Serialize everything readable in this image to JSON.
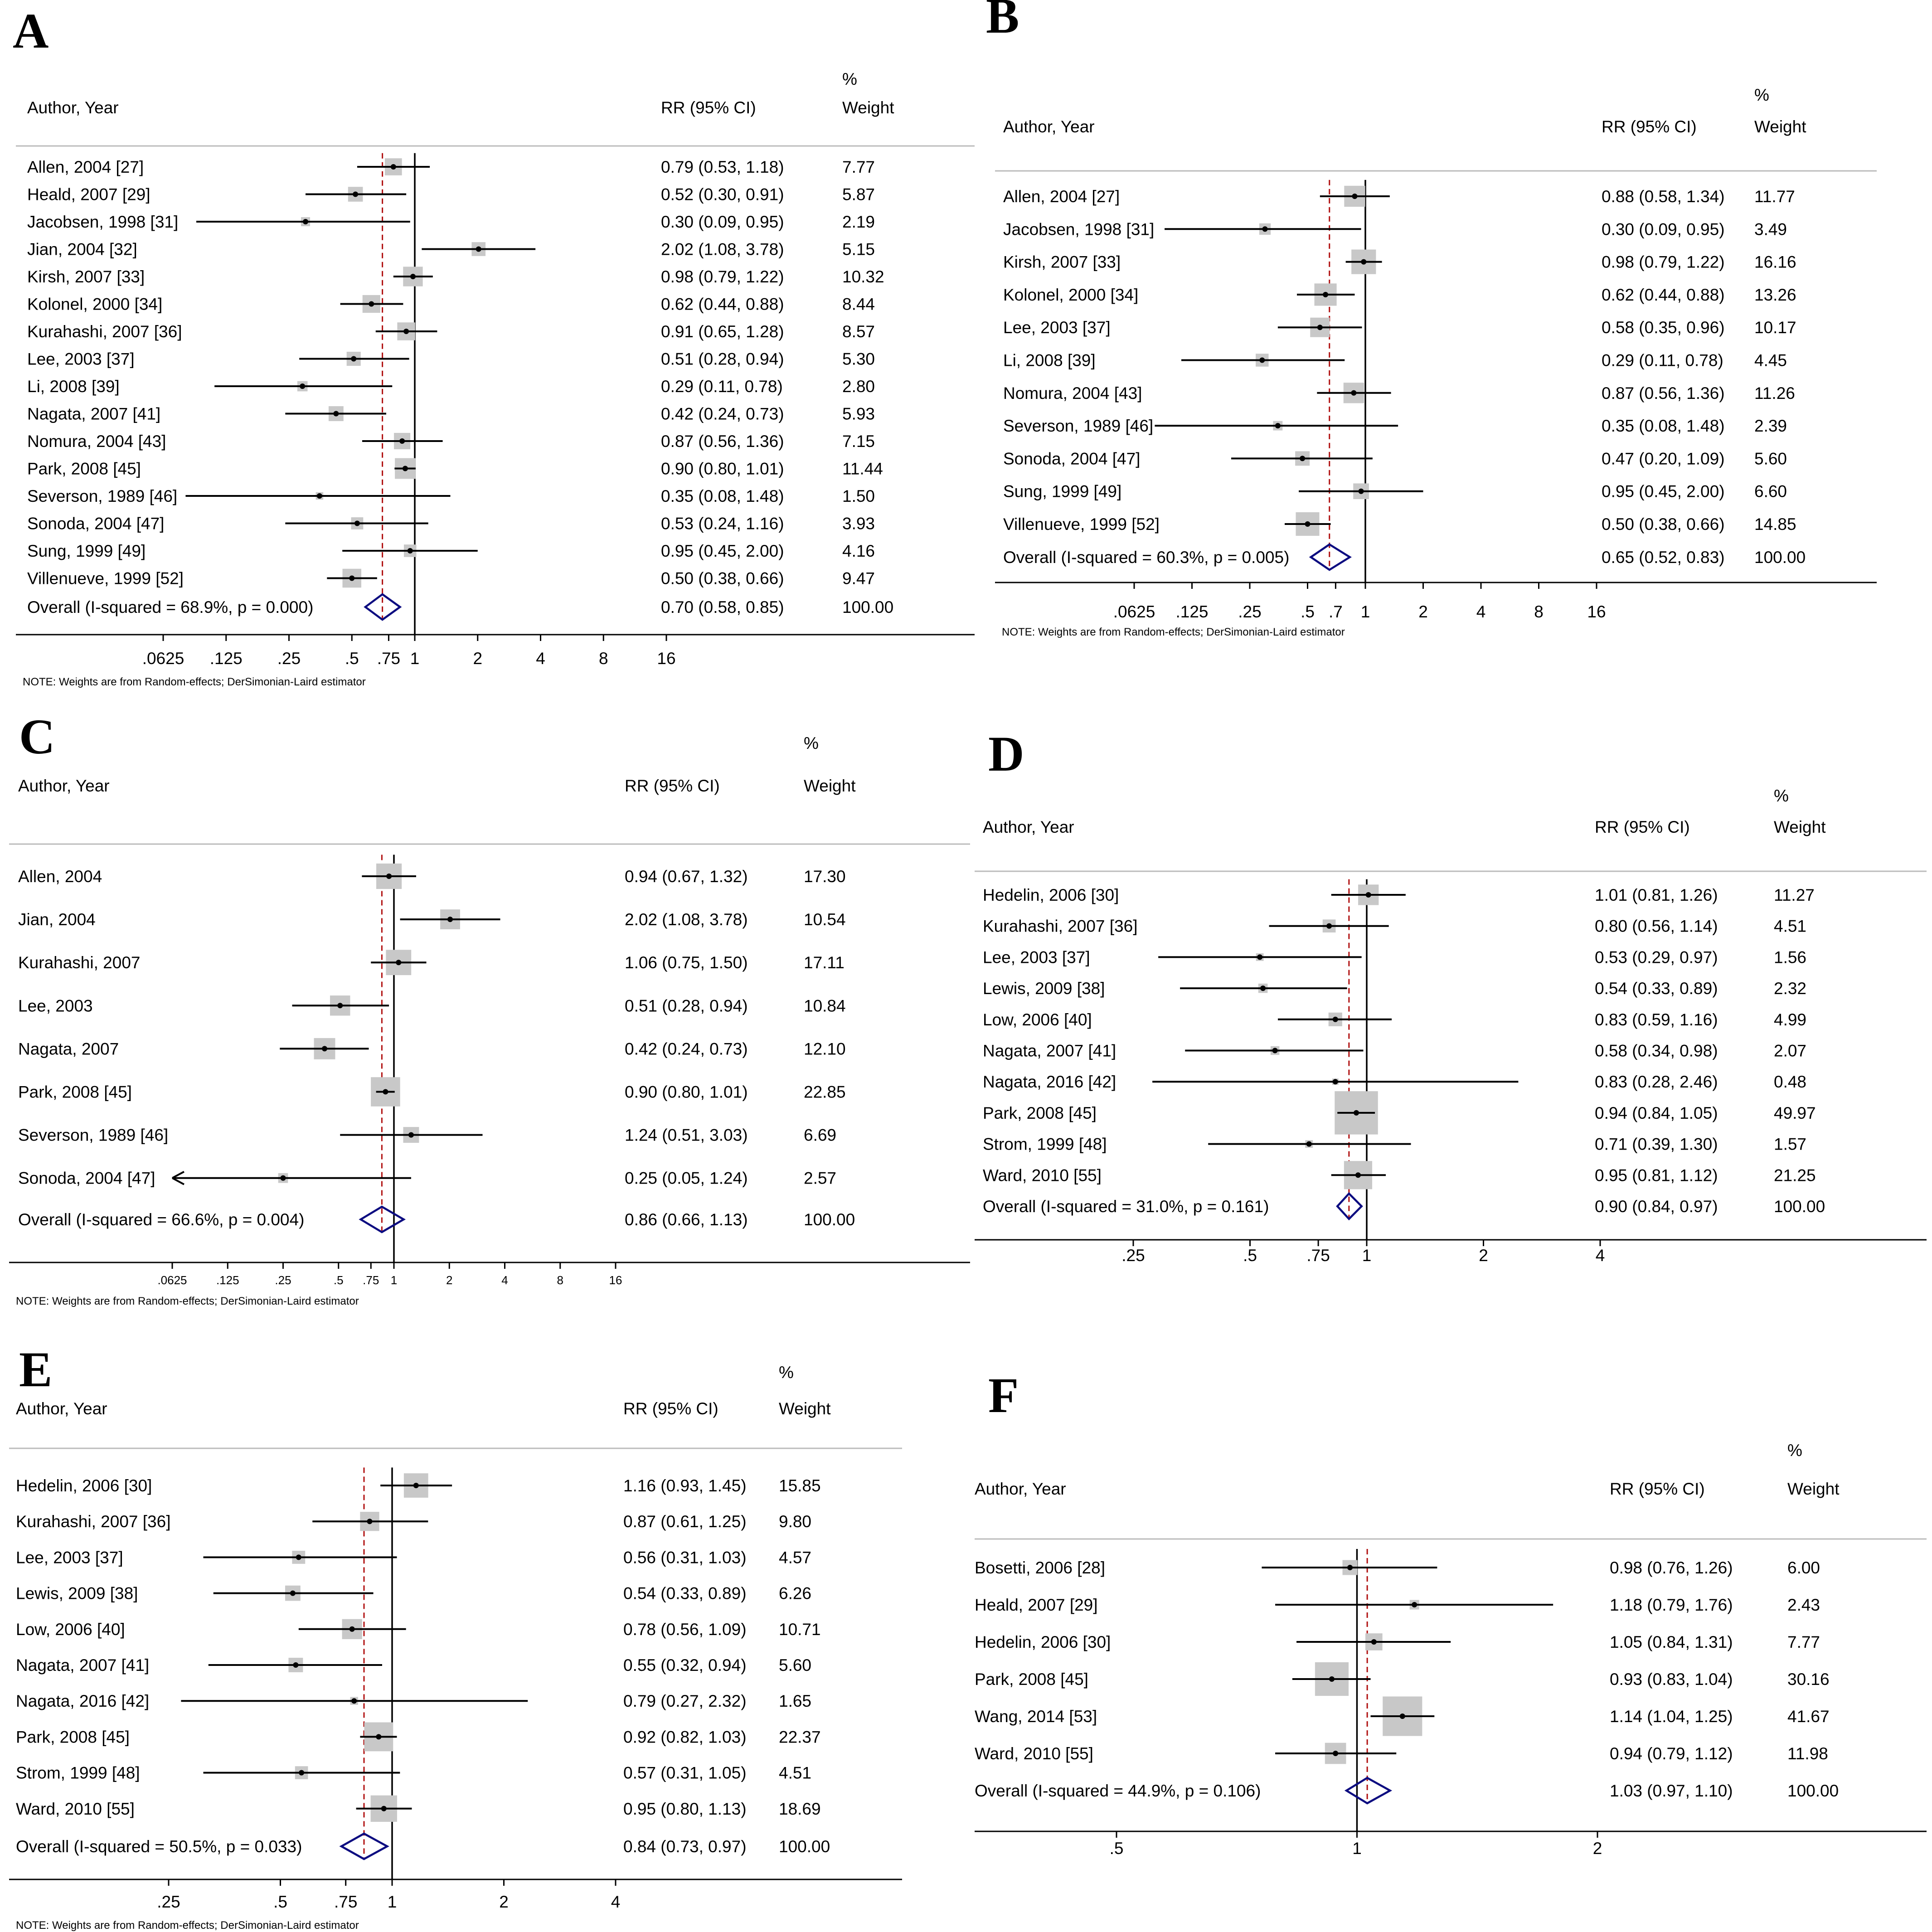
{
  "colors": {
    "line": "#000000",
    "marker_box": "#c8c8c8",
    "overall_diamond": "#0b0b80",
    "overall_ref_line": "#b01010",
    "divider": "#bbbbbb"
  },
  "chart_data": [
    {
      "type": "forest",
      "panel": "A",
      "col_headers": {
        "study": "Author, Year",
        "rr": "RR (95% CI)",
        "pct": "%",
        "weight": "Weight"
      },
      "rows": [
        {
          "label": "Allen, 2004 [27]",
          "rr": 0.79,
          "lo": 0.53,
          "hi": 1.18,
          "ci_text": "0.79 (0.53, 1.18)",
          "weight": "7.77"
        },
        {
          "label": "Heald, 2007 [29]",
          "rr": 0.52,
          "lo": 0.3,
          "hi": 0.91,
          "ci_text": "0.52 (0.30, 0.91)",
          "weight": "5.87"
        },
        {
          "label": "Jacobsen, 1998 [31]",
          "rr": 0.3,
          "lo": 0.09,
          "hi": 0.95,
          "ci_text": "0.30 (0.09, 0.95)",
          "weight": "2.19"
        },
        {
          "label": "Jian, 2004 [32]",
          "rr": 2.02,
          "lo": 1.08,
          "hi": 3.78,
          "ci_text": "2.02 (1.08, 3.78)",
          "weight": "5.15"
        },
        {
          "label": "Kirsh, 2007 [33]",
          "rr": 0.98,
          "lo": 0.79,
          "hi": 1.22,
          "ci_text": "0.98 (0.79, 1.22)",
          "weight": "10.32"
        },
        {
          "label": "Kolonel, 2000 [34]",
          "rr": 0.62,
          "lo": 0.44,
          "hi": 0.88,
          "ci_text": "0.62 (0.44, 0.88)",
          "weight": "8.44"
        },
        {
          "label": "Kurahashi, 2007 [36]",
          "rr": 0.91,
          "lo": 0.65,
          "hi": 1.28,
          "ci_text": "0.91 (0.65, 1.28)",
          "weight": "8.57"
        },
        {
          "label": "Lee, 2003 [37]",
          "rr": 0.51,
          "lo": 0.28,
          "hi": 0.94,
          "ci_text": "0.51 (0.28, 0.94)",
          "weight": "5.30"
        },
        {
          "label": "Li, 2008 [39]",
          "rr": 0.29,
          "lo": 0.11,
          "hi": 0.78,
          "ci_text": "0.29 (0.11, 0.78)",
          "weight": "2.80"
        },
        {
          "label": "Nagata, 2007 [41]",
          "rr": 0.42,
          "lo": 0.24,
          "hi": 0.73,
          "ci_text": "0.42 (0.24, 0.73)",
          "weight": "5.93"
        },
        {
          "label": "Nomura, 2004 [43]",
          "rr": 0.87,
          "lo": 0.56,
          "hi": 1.36,
          "ci_text": "0.87 (0.56, 1.36)",
          "weight": "7.15"
        },
        {
          "label": "Park, 2008 [45]",
          "rr": 0.9,
          "lo": 0.8,
          "hi": 1.01,
          "ci_text": "0.90 (0.80, 1.01)",
          "weight": "11.44"
        },
        {
          "label": "Severson, 1989 [46]",
          "rr": 0.35,
          "lo": 0.08,
          "hi": 1.48,
          "ci_text": "0.35 (0.08, 1.48)",
          "weight": "1.50"
        },
        {
          "label": "Sonoda, 2004 [47]",
          "rr": 0.53,
          "lo": 0.24,
          "hi": 1.16,
          "ci_text": "0.53 (0.24, 1.16)",
          "weight": "3.93"
        },
        {
          "label": "Sung, 1999 [49]",
          "rr": 0.95,
          "lo": 0.45,
          "hi": 2.0,
          "ci_text": "0.95 (0.45, 2.00)",
          "weight": "4.16"
        },
        {
          "label": "Villenueve, 1999 [52]",
          "rr": 0.5,
          "lo": 0.38,
          "hi": 0.66,
          "ci_text": "0.50 (0.38, 0.66)",
          "weight": "9.47"
        }
      ],
      "overall": {
        "label": "Overall (I-squared = 68.9%, p = 0.000)",
        "rr": 0.7,
        "lo": 0.58,
        "hi": 0.85,
        "ci_text": "0.70 (0.58, 0.85)",
        "weight": "100.00"
      },
      "xscale": "log",
      "xlim": [
        0.0625,
        16
      ],
      "ticks": [
        0.0625,
        0.125,
        0.25,
        0.5,
        0.75,
        1,
        2,
        4,
        8,
        16
      ],
      "tick_labels": [
        ".0625",
        ".125",
        ".25",
        ".5",
        ".75",
        "1",
        "2",
        "4",
        "8",
        "16"
      ],
      "note": "NOTE: Weights are from Random-effects; DerSimonian-Laird estimator"
    },
    {
      "type": "forest",
      "panel": "B",
      "col_headers": {
        "study": "Author, Year",
        "rr": "RR (95% CI)",
        "pct": "%",
        "weight": "Weight"
      },
      "rows": [
        {
          "label": "Allen, 2004 [27]",
          "rr": 0.88,
          "lo": 0.58,
          "hi": 1.34,
          "ci_text": "0.88 (0.58, 1.34)",
          "weight": "11.77"
        },
        {
          "label": "Jacobsen, 1998 [31]",
          "rr": 0.3,
          "lo": 0.09,
          "hi": 0.95,
          "ci_text": "0.30 (0.09, 0.95)",
          "weight": "3.49"
        },
        {
          "label": "Kirsh, 2007 [33]",
          "rr": 0.98,
          "lo": 0.79,
          "hi": 1.22,
          "ci_text": "0.98 (0.79, 1.22)",
          "weight": "16.16"
        },
        {
          "label": "Kolonel, 2000 [34]",
          "rr": 0.62,
          "lo": 0.44,
          "hi": 0.88,
          "ci_text": "0.62 (0.44, 0.88)",
          "weight": "13.26"
        },
        {
          "label": "Lee, 2003 [37]",
          "rr": 0.58,
          "lo": 0.35,
          "hi": 0.96,
          "ci_text": "0.58 (0.35, 0.96)",
          "weight": "10.17"
        },
        {
          "label": "Li, 2008 [39]",
          "rr": 0.29,
          "lo": 0.11,
          "hi": 0.78,
          "ci_text": "0.29 (0.11, 0.78)",
          "weight": "4.45"
        },
        {
          "label": "Nomura, 2004 [43]",
          "rr": 0.87,
          "lo": 0.56,
          "hi": 1.36,
          "ci_text": "0.87 (0.56, 1.36)",
          "weight": "11.26"
        },
        {
          "label": "Severson, 1989 [46]",
          "rr": 0.35,
          "lo": 0.08,
          "hi": 1.48,
          "ci_text": "0.35 (0.08, 1.48)",
          "weight": "2.39"
        },
        {
          "label": "Sonoda, 2004 [47]",
          "rr": 0.47,
          "lo": 0.2,
          "hi": 1.09,
          "ci_text": "0.47 (0.20, 1.09)",
          "weight": "5.60"
        },
        {
          "label": "Sung, 1999 [49]",
          "rr": 0.95,
          "lo": 0.45,
          "hi": 2.0,
          "ci_text": "0.95 (0.45, 2.00)",
          "weight": "6.60"
        },
        {
          "label": "Villenueve, 1999 [52]",
          "rr": 0.5,
          "lo": 0.38,
          "hi": 0.66,
          "ci_text": "0.50 (0.38, 0.66)",
          "weight": "14.85"
        }
      ],
      "overall": {
        "label": "Overall (I-squared = 60.3%, p = 0.005)",
        "rr": 0.65,
        "lo": 0.52,
        "hi": 0.83,
        "ci_text": "0.65 (0.52, 0.83)",
        "weight": "100.00"
      },
      "xscale": "log",
      "xlim": [
        0.0625,
        16
      ],
      "ticks": [
        0.0625,
        0.125,
        0.25,
        0.5,
        0.7,
        1,
        2,
        4,
        8,
        16
      ],
      "tick_labels": [
        ".0625",
        ".125",
        ".25",
        ".5",
        ".7",
        "1",
        "2",
        "4",
        "8",
        "16"
      ],
      "note": "NOTE: Weights are from Random-effects; DerSimonian-Laird estimator"
    },
    {
      "type": "forest",
      "panel": "C",
      "col_headers": {
        "study": "Author, Year",
        "rr": "RR (95% CI)",
        "pct": "%",
        "weight": "Weight"
      },
      "rows": [
        {
          "label": "Allen, 2004",
          "rr": 0.94,
          "lo": 0.67,
          "hi": 1.32,
          "ci_text": "0.94 (0.67, 1.32)",
          "weight": "17.30"
        },
        {
          "label": "Jian, 2004",
          "rr": 2.02,
          "lo": 1.08,
          "hi": 3.78,
          "ci_text": "2.02 (1.08, 3.78)",
          "weight": "10.54"
        },
        {
          "label": "Kurahashi, 2007",
          "rr": 1.06,
          "lo": 0.75,
          "hi": 1.5,
          "ci_text": "1.06 (0.75, 1.50)",
          "weight": "17.11"
        },
        {
          "label": "Lee, 2003",
          "rr": 0.51,
          "lo": 0.28,
          "hi": 0.94,
          "ci_text": "0.51 (0.28, 0.94)",
          "weight": "10.84"
        },
        {
          "label": "Nagata, 2007",
          "rr": 0.42,
          "lo": 0.24,
          "hi": 0.73,
          "ci_text": "0.42 (0.24, 0.73)",
          "weight": "12.10"
        },
        {
          "label": "Park, 2008 [45]",
          "rr": 0.9,
          "lo": 0.8,
          "hi": 1.01,
          "ci_text": "0.90 (0.80, 1.01)",
          "weight": "22.85"
        },
        {
          "label": "Severson, 1989 [46]",
          "rr": 1.24,
          "lo": 0.51,
          "hi": 3.03,
          "ci_text": "1.24 (0.51, 3.03)",
          "weight": "6.69"
        },
        {
          "label": "Sonoda, 2004 [47]",
          "rr": 0.25,
          "lo": 0.05,
          "hi": 1.24,
          "ci_text": "0.25 (0.05, 1.24)",
          "weight": "2.57",
          "arrow_left": true
        }
      ],
      "overall": {
        "label": "Overall (I-squared = 66.6%, p = 0.004)",
        "rr": 0.86,
        "lo": 0.66,
        "hi": 1.13,
        "ci_text": "0.86 (0.66, 1.13)",
        "weight": "100.00"
      },
      "xscale": "log",
      "xlim": [
        0.0625,
        16
      ],
      "ticks": [
        0.0625,
        0.125,
        0.25,
        0.5,
        0.75,
        1,
        2,
        4,
        8,
        16
      ],
      "tick_labels": [
        ".0625",
        ".125",
        ".25",
        ".5",
        ".75",
        "1",
        "2",
        "4",
        "8",
        "16"
      ],
      "note": "NOTE: Weights are from Random-effects; DerSimonian-Laird estimator"
    },
    {
      "type": "forest",
      "panel": "D",
      "col_headers": {
        "study": "Author, Year",
        "rr": "RR (95% CI)",
        "pct": "%",
        "weight": "Weight"
      },
      "rows": [
        {
          "label": "Hedelin, 2006 [30]",
          "rr": 1.01,
          "lo": 0.81,
          "hi": 1.26,
          "ci_text": "1.01 (0.81, 1.26)",
          "weight": "11.27"
        },
        {
          "label": "Kurahashi, 2007 [36]",
          "rr": 0.8,
          "lo": 0.56,
          "hi": 1.14,
          "ci_text": "0.80 (0.56, 1.14)",
          "weight": "4.51"
        },
        {
          "label": "Lee, 2003 [37]",
          "rr": 0.53,
          "lo": 0.29,
          "hi": 0.97,
          "ci_text": "0.53 (0.29, 0.97)",
          "weight": "1.56"
        },
        {
          "label": "Lewis, 2009 [38]",
          "rr": 0.54,
          "lo": 0.33,
          "hi": 0.89,
          "ci_text": "0.54 (0.33, 0.89)",
          "weight": "2.32"
        },
        {
          "label": "Low, 2006 [40]",
          "rr": 0.83,
          "lo": 0.59,
          "hi": 1.16,
          "ci_text": "0.83 (0.59, 1.16)",
          "weight": "4.99"
        },
        {
          "label": "Nagata, 2007 [41]",
          "rr": 0.58,
          "lo": 0.34,
          "hi": 0.98,
          "ci_text": "0.58 (0.34, 0.98)",
          "weight": "2.07"
        },
        {
          "label": "Nagata, 2016 [42]",
          "rr": 0.83,
          "lo": 0.28,
          "hi": 2.46,
          "ci_text": "0.83 (0.28, 2.46)",
          "weight": "0.48"
        },
        {
          "label": "Park, 2008 [45]",
          "rr": 0.94,
          "lo": 0.84,
          "hi": 1.05,
          "ci_text": "0.94 (0.84, 1.05)",
          "weight": "49.97"
        },
        {
          "label": "Strom, 1999 [48]",
          "rr": 0.71,
          "lo": 0.39,
          "hi": 1.3,
          "ci_text": "0.71 (0.39, 1.30)",
          "weight": "1.57"
        },
        {
          "label": "Ward, 2010 [55]",
          "rr": 0.95,
          "lo": 0.81,
          "hi": 1.12,
          "ci_text": "0.95 (0.81, 1.12)",
          "weight": "21.25"
        }
      ],
      "overall": {
        "label": "Overall (I-squared = 31.0%, p = 0.161)",
        "rr": 0.9,
        "lo": 0.84,
        "hi": 0.97,
        "ci_text": "0.90 (0.84, 0.97)",
        "weight": "100.00"
      },
      "xscale": "log",
      "xlim": [
        0.25,
        4
      ],
      "ticks": [
        0.25,
        0.5,
        0.75,
        1,
        2,
        4
      ],
      "tick_labels": [
        ".25",
        ".5",
        ".75",
        "1",
        "2",
        "4"
      ],
      "note": ""
    },
    {
      "type": "forest",
      "panel": "E",
      "col_headers": {
        "study": "Author, Year",
        "rr": "RR (95% CI)",
        "pct": "%",
        "weight": "Weight"
      },
      "rows": [
        {
          "label": "Hedelin, 2006 [30]",
          "rr": 1.16,
          "lo": 0.93,
          "hi": 1.45,
          "ci_text": "1.16 (0.93, 1.45)",
          "weight": "15.85"
        },
        {
          "label": "Kurahashi, 2007 [36]",
          "rr": 0.87,
          "lo": 0.61,
          "hi": 1.25,
          "ci_text": "0.87 (0.61, 1.25)",
          "weight": "9.80"
        },
        {
          "label": "Lee, 2003 [37]",
          "rr": 0.56,
          "lo": 0.31,
          "hi": 1.03,
          "ci_text": "0.56 (0.31, 1.03)",
          "weight": "4.57"
        },
        {
          "label": "Lewis, 2009 [38]",
          "rr": 0.54,
          "lo": 0.33,
          "hi": 0.89,
          "ci_text": "0.54 (0.33, 0.89)",
          "weight": "6.26"
        },
        {
          "label": "Low, 2006 [40]",
          "rr": 0.78,
          "lo": 0.56,
          "hi": 1.09,
          "ci_text": "0.78 (0.56, 1.09)",
          "weight": "10.71"
        },
        {
          "label": "Nagata, 2007 [41]",
          "rr": 0.55,
          "lo": 0.32,
          "hi": 0.94,
          "ci_text": "0.55 (0.32, 0.94)",
          "weight": "5.60"
        },
        {
          "label": "Nagata, 2016 [42]",
          "rr": 0.79,
          "lo": 0.27,
          "hi": 2.32,
          "ci_text": "0.79 (0.27, 2.32)",
          "weight": "1.65"
        },
        {
          "label": "Park, 2008 [45]",
          "rr": 0.92,
          "lo": 0.82,
          "hi": 1.03,
          "ci_text": "0.92 (0.82, 1.03)",
          "weight": "22.37"
        },
        {
          "label": "Strom, 1999 [48]",
          "rr": 0.57,
          "lo": 0.31,
          "hi": 1.05,
          "ci_text": "0.57 (0.31, 1.05)",
          "weight": "4.51"
        },
        {
          "label": "Ward, 2010 [55]",
          "rr": 0.95,
          "lo": 0.8,
          "hi": 1.13,
          "ci_text": "0.95 (0.80, 1.13)",
          "weight": "18.69"
        }
      ],
      "overall": {
        "label": "Overall (I-squared = 50.5%, p = 0.033)",
        "rr": 0.84,
        "lo": 0.73,
        "hi": 0.97,
        "ci_text": "0.84 (0.73, 0.97)",
        "weight": "100.00"
      },
      "xscale": "log",
      "xlim": [
        0.25,
        4
      ],
      "ticks": [
        0.25,
        0.5,
        0.75,
        1,
        2,
        4
      ],
      "tick_labels": [
        ".25",
        ".5",
        ".75",
        "1",
        "2",
        "4"
      ],
      "note": "NOTE: Weights are from Random-effects; DerSimonian-Laird estimator"
    },
    {
      "type": "forest",
      "panel": "F",
      "col_headers": {
        "study": "Author, Year",
        "rr": "RR (95% CI)",
        "pct": "%",
        "weight": "Weight"
      },
      "rows": [
        {
          "label": "Bosetti, 2006 [28]",
          "rr": 0.98,
          "lo": 0.76,
          "hi": 1.26,
          "ci_text": "0.98 (0.76, 1.26)",
          "weight": "6.00"
        },
        {
          "label": "Heald, 2007 [29]",
          "rr": 1.18,
          "lo": 0.79,
          "hi": 1.76,
          "ci_text": "1.18 (0.79, 1.76)",
          "weight": "2.43"
        },
        {
          "label": "Hedelin, 2006 [30]",
          "rr": 1.05,
          "lo": 0.84,
          "hi": 1.31,
          "ci_text": "1.05 (0.84, 1.31)",
          "weight": "7.77"
        },
        {
          "label": "Park, 2008 [45]",
          "rr": 0.93,
          "lo": 0.83,
          "hi": 1.04,
          "ci_text": "0.93 (0.83, 1.04)",
          "weight": "30.16"
        },
        {
          "label": "Wang, 2014 [53]",
          "rr": 1.14,
          "lo": 1.04,
          "hi": 1.25,
          "ci_text": "1.14 (1.04, 1.25)",
          "weight": "41.67"
        },
        {
          "label": "Ward, 2010 [55]",
          "rr": 0.94,
          "lo": 0.79,
          "hi": 1.12,
          "ci_text": "0.94 (0.79, 1.12)",
          "weight": "11.98"
        }
      ],
      "overall": {
        "label": "Overall (I-squared = 44.9%, p = 0.106)",
        "rr": 1.03,
        "lo": 0.97,
        "hi": 1.1,
        "ci_text": "1.03 (0.97, 1.10)",
        "weight": "100.00"
      },
      "xscale": "log",
      "xlim": [
        0.5,
        2
      ],
      "ticks": [
        0.5,
        1,
        2
      ],
      "tick_labels": [
        ".5",
        "1",
        "2"
      ],
      "note": ""
    }
  ]
}
